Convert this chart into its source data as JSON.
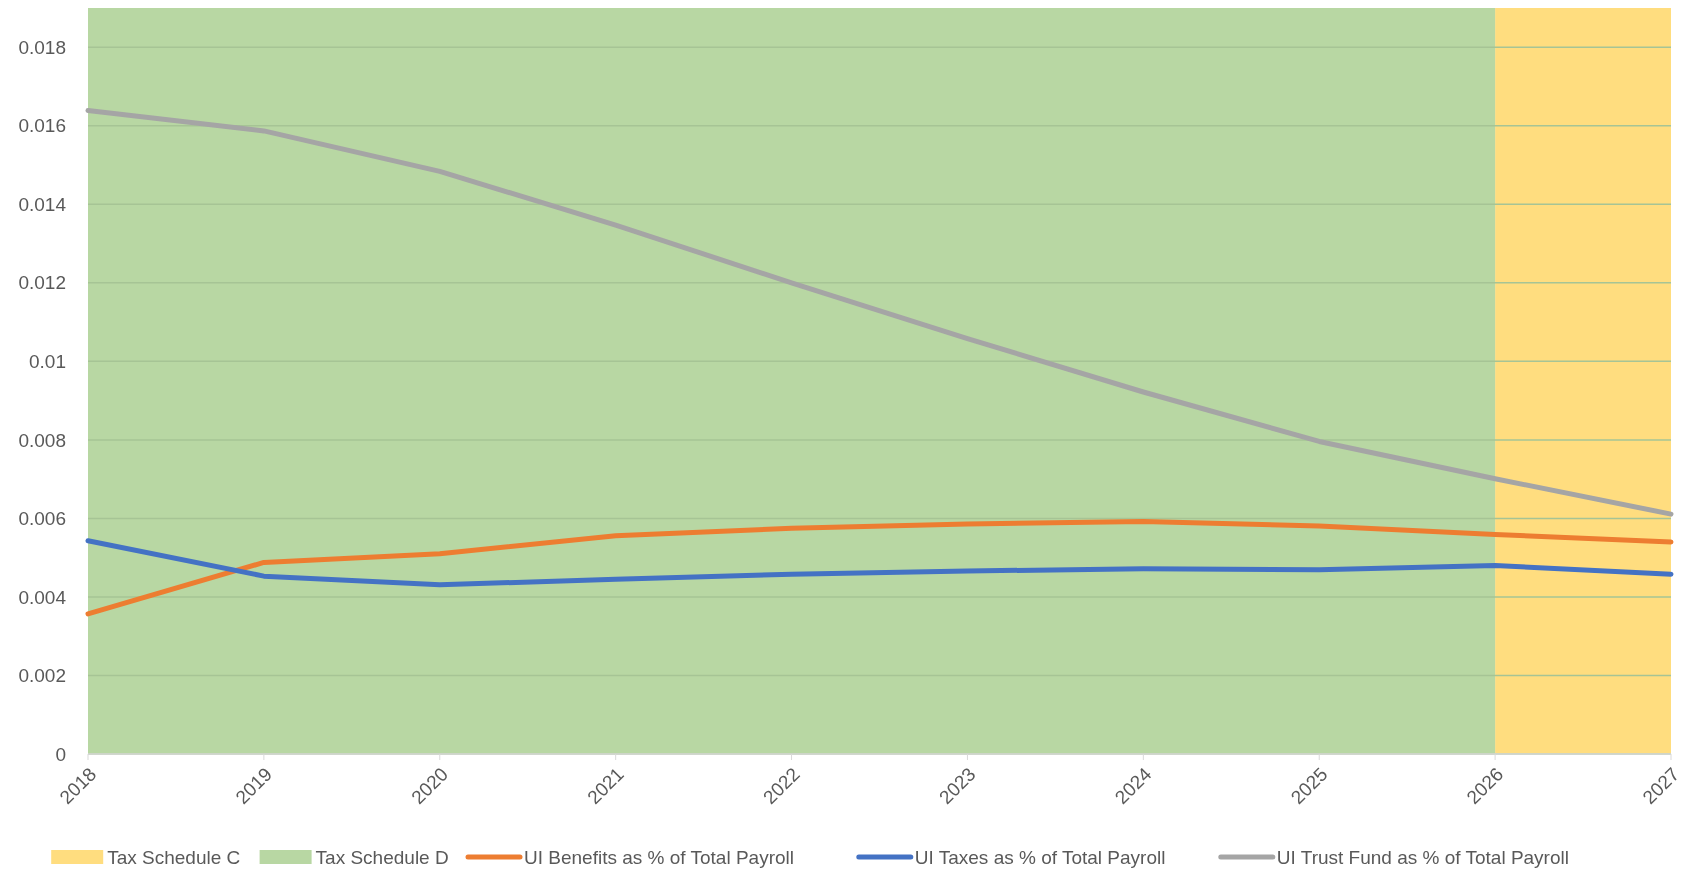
{
  "chart_data": {
    "type": "line",
    "x": [
      2018,
      2019,
      2020,
      2021,
      2022,
      2023,
      2024,
      2025,
      2026,
      2027
    ],
    "xlim": [
      2018,
      2027
    ],
    "xticks": [
      2018,
      2019,
      2020,
      2021,
      2022,
      2023,
      2024,
      2025,
      2026,
      2027
    ],
    "ylim": [
      0,
      0.019
    ],
    "yticks": [
      0,
      0.002,
      0.004,
      0.006,
      0.008,
      0.01,
      0.012,
      0.014,
      0.016,
      0.018
    ],
    "grid": "y",
    "legend": "bottom",
    "line_style": "solid",
    "bands": [
      {
        "axis": "x",
        "from": 2026,
        "to": 2027,
        "label": "Tax Schedule C",
        "color": "#ffdd7f"
      },
      {
        "axis": "x",
        "from": 2018,
        "to": 2026,
        "label": "Tax Schedule D",
        "color": "#b8d7a3"
      }
    ],
    "series": [
      {
        "name": "UI Benefits as % of Total Payroll",
        "color": "#ed7d31",
        "values": [
          0.00357,
          0.00488,
          0.0051,
          0.00556,
          0.00575,
          0.00586,
          0.00592,
          0.00581,
          0.00559,
          0.0054
        ]
      },
      {
        "name": "UI Taxes as % of Total Payroll",
        "color": "#4472c4",
        "values": [
          0.00543,
          0.00453,
          0.00431,
          0.00445,
          0.00458,
          0.00466,
          0.00472,
          0.00469,
          0.0048,
          0.00458
        ]
      },
      {
        "name": "UI Trust Fund as % of Total Payroll",
        "color": "#a5a5a5",
        "values": [
          0.01639,
          0.01587,
          0.01484,
          0.01347,
          0.012,
          0.01058,
          0.00922,
          0.00796,
          0.00701,
          0.00611
        ]
      }
    ]
  }
}
